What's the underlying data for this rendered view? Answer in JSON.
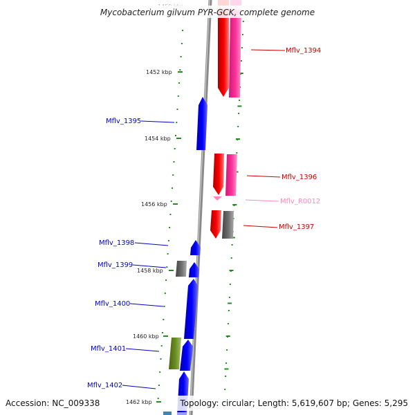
{
  "title": "Mycobacterium gilvum PYR-GCK, complete genome",
  "footer": {
    "accession": "Accession: NC_009338",
    "topology": "Topology: circular; Length: 5,619,607 bp; Genes: 5,295"
  },
  "colors": {
    "cds_plus": "#ff0000",
    "cds_plus_alt": "#ff3399",
    "cds_minus": "#0000ff",
    "pseudo": "#707070",
    "rna": "#ff88bb",
    "other": "#6b8e23",
    "backbone": "#888888",
    "tick": "#228B22"
  },
  "scale_labels": [
    {
      "text": "1450 kbp",
      "faded": true
    },
    {
      "text": "1452 kbp",
      "faded": false
    },
    {
      "text": "1454 kbp",
      "faded": false
    },
    {
      "text": "1456 kbp",
      "faded": false
    },
    {
      "text": "1458 kbp",
      "faded": false
    },
    {
      "text": "1460 kbp",
      "faded": false
    },
    {
      "text": "1462 kbp",
      "faded": false
    }
  ],
  "gene_labels": [
    {
      "text": "Mflv_1394",
      "color": "#cc0000"
    },
    {
      "text": "Mflv_1395",
      "color": "#0000cc"
    },
    {
      "text": "Mflv_1396",
      "color": "#cc0000"
    },
    {
      "text": "Mflv_R0012",
      "color": "#ff88bb"
    },
    {
      "text": "Mflv_1397",
      "color": "#cc0000"
    },
    {
      "text": "Mflv_1398",
      "color": "#0000cc"
    },
    {
      "text": "Mflv_1399",
      "color": "#0000cc"
    },
    {
      "text": "Mflv_1400",
      "color": "#0000cc"
    },
    {
      "text": "Mflv_1401",
      "color": "#0000cc"
    },
    {
      "text": "Mflv_1402",
      "color": "#0000cc"
    }
  ]
}
